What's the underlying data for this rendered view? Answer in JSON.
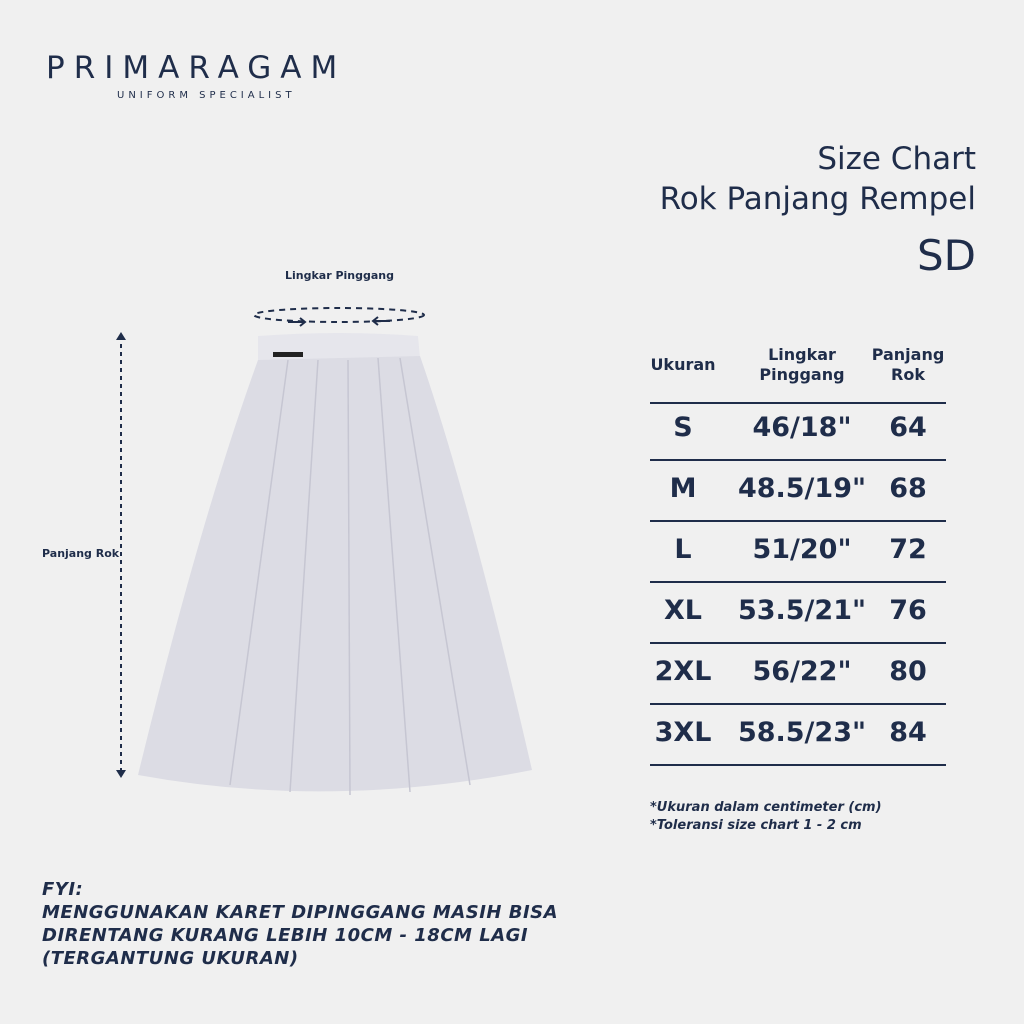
{
  "brand": {
    "name": "PRIMARAGAM",
    "tagline": "UNIFORM SPECIALIST"
  },
  "title": {
    "line1": "Size Chart",
    "line2": "Rok Panjang Rempel",
    "line3": "SD"
  },
  "diagram": {
    "waist_label": "Lingkar Pinggang",
    "length_label": "Panjang Rok"
  },
  "table": {
    "headers": [
      "Ukuran",
      "Lingkar\nPinggang",
      "Panjang\nRok"
    ],
    "rows": [
      {
        "size": "S",
        "waist": "46/18\"",
        "length": "64"
      },
      {
        "size": "M",
        "waist": "48.5/19\"",
        "length": "68"
      },
      {
        "size": "L",
        "waist": "51/20\"",
        "length": "72"
      },
      {
        "size": "XL",
        "waist": "53.5/21\"",
        "length": "76"
      },
      {
        "size": "2XL",
        "waist": "56/22\"",
        "length": "80"
      },
      {
        "size": "3XL",
        "waist": "58.5/23\"",
        "length": "84"
      }
    ]
  },
  "notes": [
    "*Ukuran dalam centimeter (cm)",
    "*Toleransi size chart 1 - 2 cm"
  ],
  "fyi": {
    "heading": "FYI:",
    "lines": [
      "MENGGUNAKAN KARET DIPINGGANG MASIH BISA",
      "DIRENTANG KURANG LEBIH 10CM - 18CM LAGI",
      "(TERGANTUNG UKURAN)"
    ]
  },
  "colors": {
    "navy": "#1f2d4a",
    "background": "#f0f0f0"
  }
}
